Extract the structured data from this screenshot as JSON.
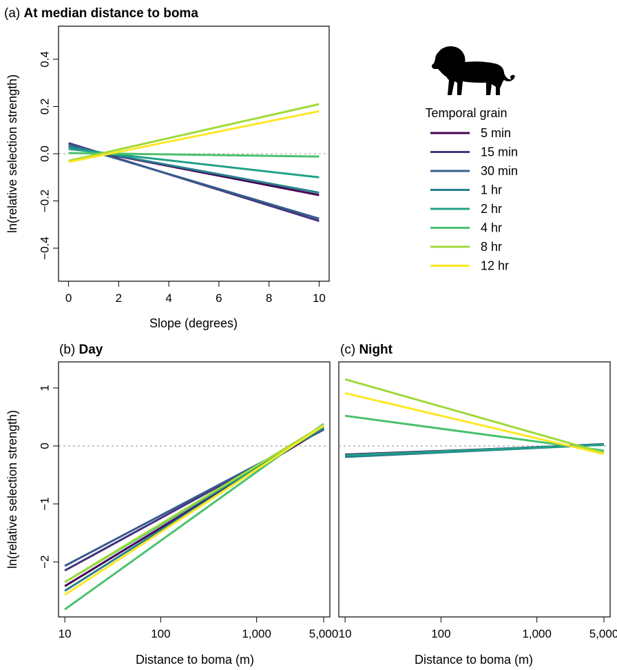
{
  "legend": {
    "title": "Temporal grain",
    "icon": "lion-icon",
    "entries": [
      {
        "label": "5 min",
        "color": "#440154"
      },
      {
        "label": "15 min",
        "color": "#46337E"
      },
      {
        "label": "30 min",
        "color": "#365C8D"
      },
      {
        "label": "1 hr",
        "color": "#277F8E"
      },
      {
        "label": "2 hr",
        "color": "#1FA187"
      },
      {
        "label": "4 hr",
        "color": "#4AC16D"
      },
      {
        "label": "8 hr",
        "color": "#9FDA3A"
      },
      {
        "label": "12 hr",
        "color": "#FDE725"
      }
    ]
  },
  "chart_data": [
    {
      "type": "line",
      "panel": "(a)",
      "title": "At median distance to boma",
      "xlabel": "Slope (degrees)",
      "ylabel": "ln(relative selection strength)",
      "xlim": [
        -0.4,
        10.4
      ],
      "ylim": [
        -0.54,
        0.54
      ],
      "xticks": [
        0,
        2,
        4,
        6,
        8,
        10
      ],
      "yticks": [
        -0.4,
        -0.2,
        0.0,
        0.2,
        0.4
      ],
      "ytick_labels": [
        "−0.4",
        "−0.2",
        "0.0",
        "0.2",
        "0.4"
      ],
      "reference_line": 0,
      "series": [
        {
          "name": "5 min",
          "x": [
            0,
            10
          ],
          "y": [
            0.03,
            -0.175
          ]
        },
        {
          "name": "15 min",
          "x": [
            0,
            10
          ],
          "y": [
            0.045,
            -0.285
          ]
        },
        {
          "name": "30 min",
          "x": [
            0,
            10
          ],
          "y": [
            0.04,
            -0.275
          ]
        },
        {
          "name": "1 hr",
          "x": [
            0,
            10
          ],
          "y": [
            0.03,
            -0.165
          ]
        },
        {
          "name": "2 hr",
          "x": [
            0,
            10
          ],
          "y": [
            0.02,
            -0.1
          ]
        },
        {
          "name": "4 hr",
          "x": [
            0,
            10
          ],
          "y": [
            0.003,
            -0.012
          ]
        },
        {
          "name": "8 hr",
          "x": [
            0,
            10
          ],
          "y": [
            -0.03,
            0.21
          ]
        },
        {
          "name": "12 hr",
          "x": [
            0,
            10
          ],
          "y": [
            -0.035,
            0.18
          ]
        }
      ]
    },
    {
      "type": "line",
      "panel": "(b)",
      "title": "Day",
      "xlabel": "Distance to boma (m)",
      "ylabel": "ln(relative selection strength)",
      "xscale": "log",
      "xlim": [
        8.6,
        5800
      ],
      "ylim": [
        -2.95,
        1.45
      ],
      "xticks": [
        10,
        100,
        1000,
        5000
      ],
      "xtick_labels": [
        "10",
        "100",
        "1,000",
        "5,000"
      ],
      "yticks": [
        -2,
        -1,
        0,
        1
      ],
      "ytick_labels": [
        "−2",
        "−1",
        "0",
        "1"
      ],
      "reference_line": 0,
      "series": [
        {
          "name": "5 min",
          "x": [
            10,
            5000
          ],
          "y": [
            -2.42,
            0.3
          ]
        },
        {
          "name": "15 min",
          "x": [
            10,
            5000
          ],
          "y": [
            -2.15,
            0.29
          ]
        },
        {
          "name": "30 min",
          "x": [
            10,
            5000
          ],
          "y": [
            -2.07,
            0.28
          ]
        },
        {
          "name": "1 hr",
          "x": [
            10,
            5000
          ],
          "y": [
            -2.5,
            0.33
          ]
        },
        {
          "name": "2 hr",
          "x": [
            10,
            5000
          ],
          "y": [
            -2.35,
            0.32
          ]
        },
        {
          "name": "4 hr",
          "x": [
            10,
            5000
          ],
          "y": [
            -2.82,
            0.38
          ]
        },
        {
          "name": "8 hr",
          "x": [
            10,
            5000
          ],
          "y": [
            -2.35,
            0.36
          ]
        },
        {
          "name": "12 hr",
          "x": [
            10,
            5000
          ],
          "y": [
            -2.57,
            0.35
          ]
        }
      ]
    },
    {
      "type": "line",
      "panel": "(c)",
      "title": "Night",
      "xlabel": "Distance to boma (m)",
      "xscale": "log",
      "xlim": [
        8.6,
        5800
      ],
      "ylim": [
        -2.95,
        1.45
      ],
      "xticks": [
        10,
        100,
        1000,
        5000
      ],
      "xtick_labels": [
        "10",
        "100",
        "1,000",
        "5,000"
      ],
      "reference_line": 0,
      "series": [
        {
          "name": "5 min",
          "x": [
            10,
            5000
          ],
          "y": [
            -0.15,
            0.02
          ]
        },
        {
          "name": "15 min",
          "x": [
            10,
            5000
          ],
          "y": [
            -0.17,
            0.03
          ]
        },
        {
          "name": "30 min",
          "x": [
            10,
            5000
          ],
          "y": [
            -0.18,
            0.03
          ]
        },
        {
          "name": "1 hr",
          "x": [
            10,
            5000
          ],
          "y": [
            -0.19,
            0.02
          ]
        },
        {
          "name": "2 hr",
          "x": [
            10,
            5000
          ],
          "y": [
            -0.16,
            0.02
          ]
        },
        {
          "name": "4 hr",
          "x": [
            10,
            5000
          ],
          "y": [
            0.52,
            -0.08
          ]
        },
        {
          "name": "8 hr",
          "x": [
            10,
            5000
          ],
          "y": [
            1.15,
            -0.12
          ]
        },
        {
          "name": "12 hr",
          "x": [
            10,
            5000
          ],
          "y": [
            0.91,
            -0.14
          ]
        }
      ]
    }
  ]
}
